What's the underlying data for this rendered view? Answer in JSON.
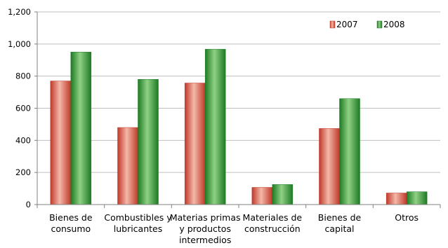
{
  "chart_data": {
    "type": "bar",
    "categories": [
      [
        "Bienes de",
        "consumo"
      ],
      [
        "Combustibles y",
        "lubricantes"
      ],
      [
        "Materias primas",
        "y productos",
        "intermedios"
      ],
      [
        "Materiales de",
        "construcción"
      ],
      [
        "Bienes de",
        "capital"
      ],
      [
        "Otros"
      ]
    ],
    "series": [
      {
        "name": "2007",
        "values": [
          770,
          480,
          757,
          107,
          474,
          72
        ],
        "color": "#e8836f",
        "colorDark": "#c0392b"
      },
      {
        "name": "2008",
        "values": [
          950,
          780,
          968,
          125,
          660,
          80
        ],
        "color": "#55b24f",
        "colorDark": "#1e7a23"
      }
    ],
    "ylim": [
      0,
      1200
    ],
    "yticks": [
      "0",
      "200",
      "400",
      "600",
      "800",
      "1,000",
      "1,200"
    ],
    "grid": true,
    "legend_position": "top-right"
  }
}
